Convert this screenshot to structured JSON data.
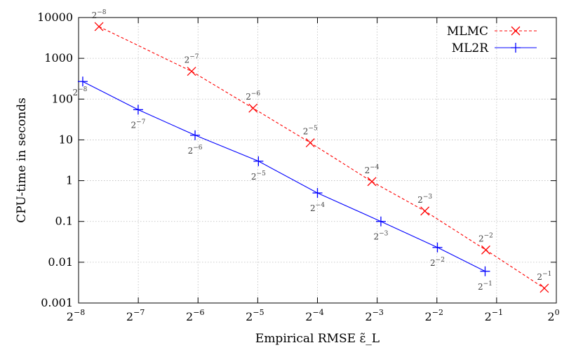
{
  "chart_data": {
    "type": "line",
    "xlabel": "Empirical RMSE ε̃_L",
    "ylabel": "CPU-time in seconds",
    "xscale": "log2",
    "yscale": "log10",
    "xlim": [
      0.00390625,
      1
    ],
    "ylim": [
      0.001,
      10000
    ],
    "grid": true,
    "legend_position": "top-right",
    "x_ticks": [
      {
        "base": "2",
        "exp": "−8",
        "value": 0.00390625
      },
      {
        "base": "2",
        "exp": "−7",
        "value": 0.0078125
      },
      {
        "base": "2",
        "exp": "−6",
        "value": 0.015625
      },
      {
        "base": "2",
        "exp": "−5",
        "value": 0.03125
      },
      {
        "base": "2",
        "exp": "−4",
        "value": 0.0625
      },
      {
        "base": "2",
        "exp": "−3",
        "value": 0.125
      },
      {
        "base": "2",
        "exp": "−2",
        "value": 0.25
      },
      {
        "base": "2",
        "exp": "−1",
        "value": 0.5
      },
      {
        "base": "2",
        "exp": "0",
        "value": 1
      }
    ],
    "y_ticks": [
      {
        "label": "0.001",
        "value": 0.001
      },
      {
        "label": "0.01",
        "value": 0.01
      },
      {
        "label": "0.1",
        "value": 0.1
      },
      {
        "label": "1",
        "value": 1
      },
      {
        "label": "10",
        "value": 10
      },
      {
        "label": "100",
        "value": 100
      },
      {
        "label": "1000",
        "value": 1000
      },
      {
        "label": "10000",
        "value": 10000
      }
    ],
    "series": [
      {
        "name": "MLMC",
        "color": "#ff0000",
        "line_style": "dashed",
        "marker": "x",
        "points": [
          {
            "x": 0.00495,
            "y": 6000,
            "label_base": "2",
            "label_exp": "−8",
            "label_pos": "above"
          },
          {
            "x": 0.0145,
            "y": 480,
            "label_base": "2",
            "label_exp": "−7",
            "label_pos": "above"
          },
          {
            "x": 0.0296,
            "y": 60,
            "label_base": "2",
            "label_exp": "−6",
            "label_pos": "above"
          },
          {
            "x": 0.0575,
            "y": 8.5,
            "label_base": "2",
            "label_exp": "−5",
            "label_pos": "above"
          },
          {
            "x": 0.1175,
            "y": 0.95,
            "label_base": "2",
            "label_exp": "−4",
            "label_pos": "above"
          },
          {
            "x": 0.2175,
            "y": 0.18,
            "label_base": "2",
            "label_exp": "−3",
            "label_pos": "above"
          },
          {
            "x": 0.441,
            "y": 0.02,
            "label_base": "2",
            "label_exp": "−2",
            "label_pos": "above"
          },
          {
            "x": 0.87,
            "y": 0.0023,
            "label_base": "2",
            "label_exp": "−1",
            "label_pos": "above"
          }
        ]
      },
      {
        "name": "ML2R",
        "color": "#0000ff",
        "line_style": "solid",
        "marker": "+",
        "points": [
          {
            "x": 0.0041,
            "y": 270,
            "label_base": "2",
            "label_exp": "−8",
            "label_pos": "below-left"
          },
          {
            "x": 0.0078,
            "y": 55,
            "label_base": "2",
            "label_exp": "−7",
            "label_pos": "below"
          },
          {
            "x": 0.0151,
            "y": 13,
            "label_base": "2",
            "label_exp": "−6",
            "label_pos": "below"
          },
          {
            "x": 0.0315,
            "y": 3,
            "label_base": "2",
            "label_exp": "−5",
            "label_pos": "below"
          },
          {
            "x": 0.0625,
            "y": 0.5,
            "label_base": "2",
            "label_exp": "−4",
            "label_pos": "below"
          },
          {
            "x": 0.1305,
            "y": 0.1,
            "label_base": "2",
            "label_exp": "−3",
            "label_pos": "below"
          },
          {
            "x": 0.2515,
            "y": 0.023,
            "label_base": "2",
            "label_exp": "−2",
            "label_pos": "below"
          },
          {
            "x": 0.4375,
            "y": 0.006,
            "label_base": "2",
            "label_exp": "−1",
            "label_pos": "below"
          }
        ]
      }
    ]
  }
}
